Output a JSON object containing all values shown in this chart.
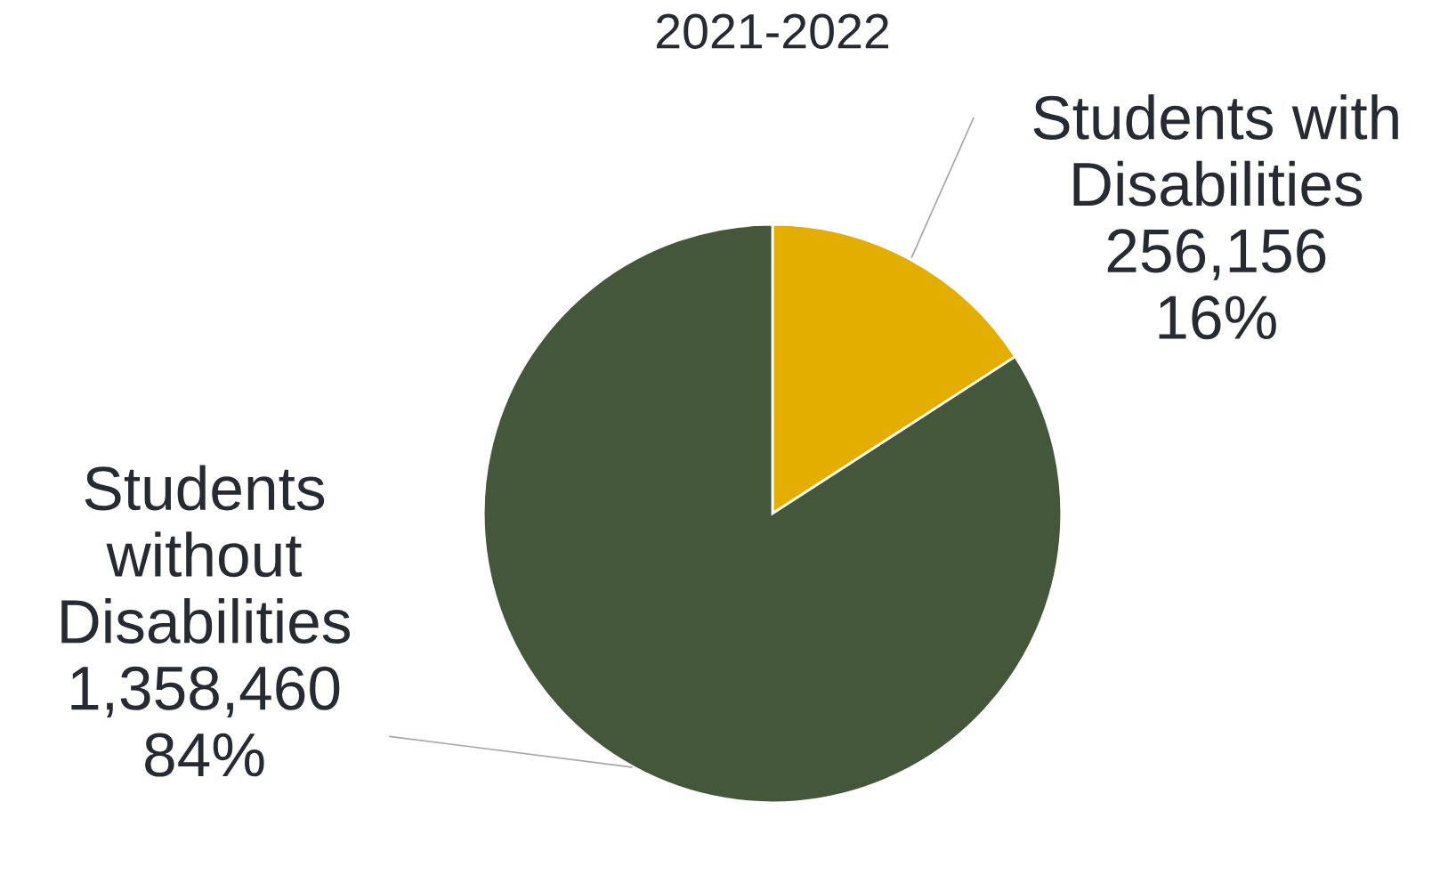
{
  "chart_data": {
    "type": "pie",
    "title": "2021-2022",
    "categories": [
      "Students with\nDisabilities",
      "Students\nwithout\nDisabilities"
    ],
    "values": [
      256156,
      1358460
    ],
    "value_labels": [
      "256,156\n16%",
      "1,358,460\n84%"
    ],
    "colors": [
      "#e3ae00",
      "#44573a"
    ]
  }
}
